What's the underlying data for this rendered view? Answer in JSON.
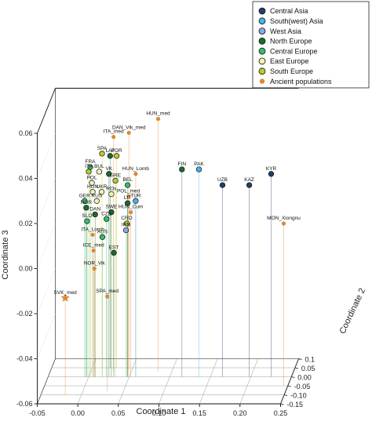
{
  "chart_data": {
    "type": "scatter",
    "xlabel": "Coordinate 1",
    "ylabel": "Coordinate 3",
    "zlabel": "Coordinate 2",
    "xlim": [
      -0.05,
      0.25
    ],
    "ylim": [
      -0.06,
      0.06
    ],
    "zlim": [
      -0.15,
      0.1
    ],
    "x_ticks": [
      "-0.05",
      "0.00",
      "0.05",
      "0.10",
      "0.15",
      "0.20",
      "0.25"
    ],
    "y_ticks": [
      "-0.06",
      "-0.04",
      "-0.02",
      "0.00",
      "0.02",
      "0.04",
      "0.06"
    ],
    "z_ticks": [
      "-0.15",
      "-0.10",
      "-0.05",
      "0.00",
      "0.05",
      "0.1"
    ],
    "legend_position": "top-right",
    "groups": [
      {
        "name": "Central Asia",
        "color": "#1f3f6e"
      },
      {
        "name": "South(west) Asia",
        "color": "#3fb6e8"
      },
      {
        "name": "West Asia",
        "color": "#8fa8e0"
      },
      {
        "name": "North Europe",
        "color": "#1d6b2c"
      },
      {
        "name": "Central Europe",
        "color": "#2fbf6b"
      },
      {
        "name": "East Europe",
        "color": "#f2f2b0"
      },
      {
        "name": "South Europe",
        "color": "#b5cc2e"
      },
      {
        "name": "Ancient populations",
        "color": "#d98a3a"
      }
    ],
    "points": [
      {
        "label": "HUN_med",
        "group": "Ancient populations",
        "x": 0.083,
        "y": 0.052,
        "z": 0.03
      },
      {
        "label": "DAN_Vik_med",
        "group": "Ancient populations",
        "x": 0.046,
        "y": 0.045,
        "z": 0.04
      },
      {
        "label": "ITA_med",
        "group": "Ancient populations",
        "x": 0.028,
        "y": 0.044,
        "z": 0.03
      },
      {
        "label": "SPA",
        "group": "South Europe",
        "x": 0.012,
        "y": 0.035,
        "z": 0.05
      },
      {
        "label": "LAT",
        "group": "North Europe",
        "x": 0.022,
        "y": 0.034,
        "z": 0.05
      },
      {
        "label": "POR",
        "group": "South Europe",
        "x": 0.03,
        "y": 0.034,
        "z": 0.05
      },
      {
        "label": "FIN",
        "group": "North Europe",
        "x": 0.115,
        "y": 0.032,
        "z": 0.0
      },
      {
        "label": "PAK",
        "group": "South(west) Asia",
        "x": 0.136,
        "y": 0.032,
        "z": 0.0
      },
      {
        "label": "FRA",
        "group": "Central Europe",
        "x": 0.002,
        "y": 0.033,
        "z": 0.0
      },
      {
        "label": "ITA",
        "group": "South Europe",
        "x": 0.0,
        "y": 0.031,
        "z": 0.0
      },
      {
        "label": "BUL",
        "group": "East Europe",
        "x": 0.013,
        "y": 0.031,
        "z": 0.0
      },
      {
        "label": "VK",
        "group": "North Europe",
        "x": 0.025,
        "y": 0.03,
        "z": 0.0
      },
      {
        "label": "HUN_Lomb",
        "group": "Ancient populations",
        "x": 0.058,
        "y": 0.03,
        "z": 0.0
      },
      {
        "label": "GRE",
        "group": "South Europe",
        "x": 0.033,
        "y": 0.027,
        "z": 0.0
      },
      {
        "label": "POL",
        "group": "East Europe",
        "x": 0.004,
        "y": 0.026,
        "z": 0.0
      },
      {
        "label": "BEL",
        "group": "Central Europe",
        "x": 0.048,
        "y": 0.025,
        "z": 0.0
      },
      {
        "label": "HUN",
        "group": "East Europe",
        "x": 0.005,
        "y": 0.022,
        "z": 0.0
      },
      {
        "label": "UKR",
        "group": "East Europe",
        "x": 0.016,
        "y": 0.022,
        "z": 0.0
      },
      {
        "label": "ROs",
        "group": "East Europe",
        "x": 0.028,
        "y": 0.021,
        "z": 0.0
      },
      {
        "label": "POL_med",
        "group": "Ancient populations",
        "x": 0.049,
        "y": 0.02,
        "z": 0.0
      },
      {
        "label": "UZB",
        "group": "Central Asia",
        "x": 0.165,
        "y": 0.025,
        "z": 0.0
      },
      {
        "label": "KAZ",
        "group": "Central Asia",
        "x": 0.198,
        "y": 0.025,
        "z": 0.0
      },
      {
        "label": "KYR",
        "group": "Central Asia",
        "x": 0.225,
        "y": 0.03,
        "z": 0.0
      },
      {
        "label": "GER",
        "group": "Central Europe",
        "x": -0.005,
        "y": 0.018,
        "z": 0.0
      },
      {
        "label": "RUS",
        "group": "East Europe",
        "x": 0.01,
        "y": 0.018,
        "z": 0.0
      },
      {
        "label": "LIT",
        "group": "North Europe",
        "x": 0.048,
        "y": 0.017,
        "z": 0.0
      },
      {
        "label": "TUR",
        "group": "South(west) Asia",
        "x": 0.058,
        "y": 0.018,
        "z": 0.0
      },
      {
        "label": "NOR",
        "group": "North Europe",
        "x": -0.003,
        "y": 0.015,
        "z": 0.0
      },
      {
        "label": "SWE",
        "group": "North Europe",
        "x": 0.028,
        "y": 0.013,
        "z": 0.0
      },
      {
        "label": "HUN_Cum",
        "group": "Ancient populations",
        "x": 0.052,
        "y": 0.013,
        "z": 0.0
      },
      {
        "label": "CZE",
        "group": "Central Europe",
        "x": 0.022,
        "y": 0.01,
        "z": 0.0
      },
      {
        "label": "DAN",
        "group": "North Europe",
        "x": 0.008,
        "y": 0.012,
        "z": 0.0
      },
      {
        "label": "SLO",
        "group": "Central Europe",
        "x": -0.002,
        "y": 0.009,
        "z": 0.0
      },
      {
        "label": "CRO",
        "group": "South Europe",
        "x": 0.047,
        "y": 0.008,
        "z": 0.0
      },
      {
        "label": "IRN",
        "group": "West Asia",
        "x": 0.046,
        "y": 0.005,
        "z": 0.0
      },
      {
        "label": "ITA_Lomb",
        "group": "Ancient populations",
        "x": 0.005,
        "y": 0.003,
        "z": 0.0
      },
      {
        "label": "AUS",
        "group": "Central Europe",
        "x": 0.017,
        "y": 0.002,
        "z": 0.0
      },
      {
        "label": "ICE_med",
        "group": "Ancient populations",
        "x": 0.006,
        "y": -0.004,
        "z": 0.0
      },
      {
        "label": "EST",
        "group": "North Europe",
        "x": 0.031,
        "y": -0.005,
        "z": 0.0
      },
      {
        "label": "MON_Xiongnu",
        "group": "Ancient populations",
        "x": 0.245,
        "y": 0.012,
        "z": -0.05
      },
      {
        "label": "NOR_Vik",
        "group": "Ancient populations",
        "x": 0.007,
        "y": -0.012,
        "z": 0.0
      },
      {
        "label": "SPA_med",
        "group": "Ancient populations",
        "x": 0.03,
        "y": -0.018,
        "z": -0.08
      },
      {
        "label": "SVK_med",
        "group": "Ancient populations",
        "x": -0.02,
        "y": -0.017,
        "z": -0.1,
        "marker": "star"
      }
    ]
  }
}
